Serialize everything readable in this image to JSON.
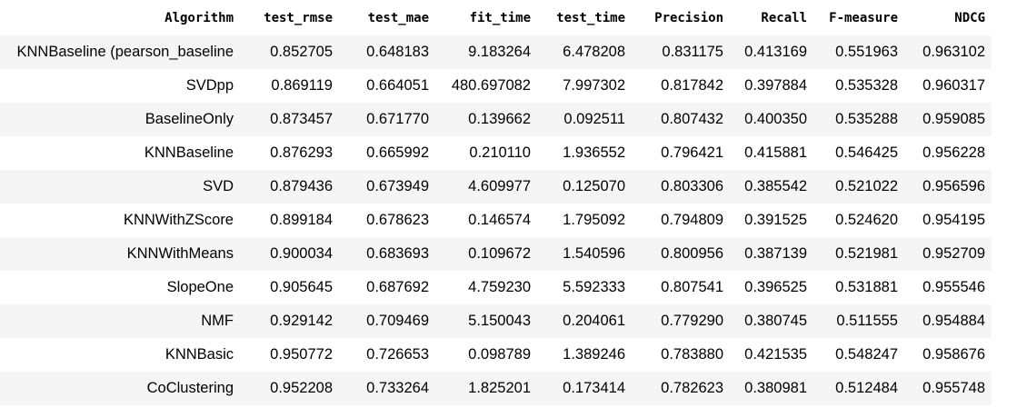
{
  "table": {
    "headers": [
      "Algorithm",
      "test_rmse",
      "test_mae",
      "fit_time",
      "test_time",
      "Precision",
      "Recall",
      "F-measure",
      "NDCG"
    ],
    "rows": [
      [
        "KNNBaseline (pearson_baseline",
        "0.852705",
        "0.648183",
        "9.183264",
        "6.478208",
        "0.831175",
        "0.413169",
        "0.551963",
        "0.963102"
      ],
      [
        "SVDpp",
        "0.869119",
        "0.664051",
        "480.697082",
        "7.997302",
        "0.817842",
        "0.397884",
        "0.535328",
        "0.960317"
      ],
      [
        "BaselineOnly",
        "0.873457",
        "0.671770",
        "0.139662",
        "0.092511",
        "0.807432",
        "0.400350",
        "0.535288",
        "0.959085"
      ],
      [
        "KNNBaseline",
        "0.876293",
        "0.665992",
        "0.210110",
        "1.936552",
        "0.796421",
        "0.415881",
        "0.546425",
        "0.956228"
      ],
      [
        "SVD",
        "0.879436",
        "0.673949",
        "4.609977",
        "0.125070",
        "0.803306",
        "0.385542",
        "0.521022",
        "0.956596"
      ],
      [
        "KNNWithZScore",
        "0.899184",
        "0.678623",
        "0.146574",
        "1.795092",
        "0.794809",
        "0.391525",
        "0.524620",
        "0.954195"
      ],
      [
        "KNNWithMeans",
        "0.900034",
        "0.683693",
        "0.109672",
        "1.540596",
        "0.800956",
        "0.387139",
        "0.521981",
        "0.952709"
      ],
      [
        "SlopeOne",
        "0.905645",
        "0.687692",
        "4.759230",
        "5.592333",
        "0.807541",
        "0.396525",
        "0.531881",
        "0.955546"
      ],
      [
        "NMF",
        "0.929142",
        "0.709469",
        "5.150043",
        "0.204061",
        "0.779290",
        "0.380745",
        "0.511555",
        "0.954884"
      ],
      [
        "KNNBasic",
        "0.950772",
        "0.726653",
        "0.098789",
        "1.389246",
        "0.783880",
        "0.421535",
        "0.548247",
        "0.958676"
      ],
      [
        "CoClustering",
        "0.952208",
        "0.733264",
        "1.825201",
        "0.173414",
        "0.782623",
        "0.380981",
        "0.512484",
        "0.955748"
      ]
    ]
  },
  "colors": {
    "stripe": "#f5f5f5",
    "text": "#000000",
    "background": "#ffffff"
  }
}
